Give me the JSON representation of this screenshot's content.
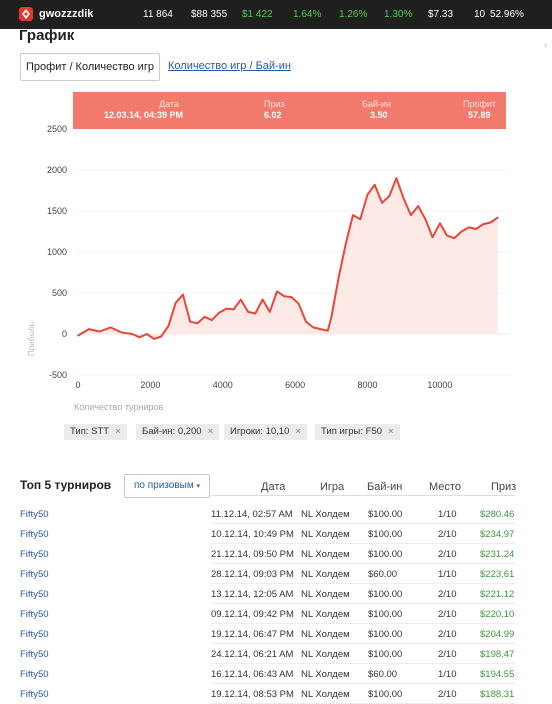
{
  "topbar": {
    "username": "gwozzzdik",
    "stats": [
      "11 864",
      "$88 355",
      "$1 422",
      "1.64%",
      "1.26%",
      "1.30%",
      "$7.33",
      "10",
      "52.96%"
    ]
  },
  "page_title": "График",
  "tabs": [
    "Профит / Количество игр",
    "Количество игр / Бай-ин"
  ],
  "tooltip": {
    "date_label": "Дата",
    "date_value": "12.03.14, 04:39 PM",
    "prize_label": "Приз",
    "prize_value": "6.02",
    "buyin_label": "Бай-ин",
    "buyin_value": "3.50",
    "profit_label": "Профит",
    "profit_value": "57.89"
  },
  "chart_data": {
    "type": "area",
    "ylabel": "Прибыль",
    "xlabel": "Количество турниров",
    "xlim": [
      0,
      11800
    ],
    "ylim": [
      -500,
      2500
    ],
    "x_ticks": [
      "0",
      "2000",
      "4000",
      "6000",
      "8000",
      "10000"
    ],
    "y_ticks": [
      "2500",
      "2000",
      "1500",
      "1000",
      "500",
      "0",
      "-500"
    ],
    "series": [
      {
        "x": [
          0,
          300,
          600,
          900,
          1200,
          1500,
          1700,
          1900,
          2100,
          2300,
          2500,
          2700,
          2900,
          3100,
          3300,
          3500,
          3700,
          3900,
          4100,
          4300,
          4500,
          4700,
          4900,
          5100,
          5300,
          5500,
          5700,
          5900,
          6100,
          6300,
          6500,
          6700,
          6900,
          7000,
          7200,
          7400,
          7600,
          7800,
          8000,
          8200,
          8400,
          8600,
          8800,
          9000,
          9200,
          9400,
          9600,
          9800,
          10000,
          10200,
          10400,
          10600,
          10800,
          11000,
          11200,
          11400,
          11600
        ],
        "y": [
          -20,
          60,
          30,
          80,
          20,
          0,
          -40,
          0,
          -60,
          -30,
          100,
          380,
          480,
          150,
          130,
          210,
          170,
          260,
          310,
          300,
          420,
          270,
          250,
          420,
          270,
          520,
          460,
          450,
          370,
          150,
          80,
          60,
          40,
          200,
          680,
          1100,
          1450,
          1400,
          1700,
          1820,
          1600,
          1680,
          1900,
          1650,
          1450,
          1560,
          1400,
          1180,
          1350,
          1200,
          1170,
          1250,
          1300,
          1280,
          1340,
          1360,
          1420
        ]
      }
    ]
  },
  "filters": [
    {
      "label": "Тип: STT"
    },
    {
      "label": "Бай-ин: 0,200"
    },
    {
      "label": "Игроки: 10,10"
    },
    {
      "label": "Тип игры: F50"
    }
  ],
  "top5": {
    "title": "Топ 5 турниров",
    "sort_label": "по призовым",
    "headers": [
      "Дата",
      "Игра",
      "Бай-ин",
      "Место",
      "Приз"
    ],
    "rows": [
      {
        "name": "Fifty50",
        "date": "11.12.14, 02:57 AM",
        "game": "NL Холдем",
        "buyin": "$100.00",
        "place": "1/10",
        "prize": "$280.46"
      },
      {
        "name": "Fifty50",
        "date": "10.12.14, 10:49 PM",
        "game": "NL Холдем",
        "buyin": "$100.00",
        "place": "2/10",
        "prize": "$234.97"
      },
      {
        "name": "Fifty50",
        "date": "21.12.14, 09:50 PM",
        "game": "NL Холдем",
        "buyin": "$100.00",
        "place": "2/10",
        "prize": "$231.24"
      },
      {
        "name": "Fifty50",
        "date": "28.12.14, 09:03 PM",
        "game": "NL Холдем",
        "buyin": "$60.00",
        "place": "1/10",
        "prize": "$223.61"
      },
      {
        "name": "Fifty50",
        "date": "13.12.14, 12:05 AM",
        "game": "NL Холдем",
        "buyin": "$100.00",
        "place": "2/10",
        "prize": "$221.12"
      },
      {
        "name": "Fifty50",
        "date": "09.12.14, 09:42 PM",
        "game": "NL Холдем",
        "buyin": "$100.00",
        "place": "2/10",
        "prize": "$220.10"
      },
      {
        "name": "Fifty50",
        "date": "19.12.14, 06:47 PM",
        "game": "NL Холдем",
        "buyin": "$100.00",
        "place": "2/10",
        "prize": "$204.99"
      },
      {
        "name": "Fifty50",
        "date": "24.12.14, 06:21 AM",
        "game": "NL Холдем",
        "buyin": "$100.00",
        "place": "2/10",
        "prize": "$198.47"
      },
      {
        "name": "Fifty50",
        "date": "16.12.14, 06:43 AM",
        "game": "NL Холдем",
        "buyin": "$60.00",
        "place": "1/10",
        "prize": "$194.55"
      },
      {
        "name": "Fifty50",
        "date": "19.12.14, 08:53 PM",
        "game": "NL Холдем",
        "buyin": "$100.00",
        "place": "2/10",
        "prize": "$188.31"
      }
    ]
  },
  "colors": {
    "accent": "#e8473a",
    "tooltip_bg": "#f27a6c",
    "prize_green": "#3a9a3a",
    "link": "#2a5aa8",
    "topbar_bg": "#1f1f1f"
  }
}
